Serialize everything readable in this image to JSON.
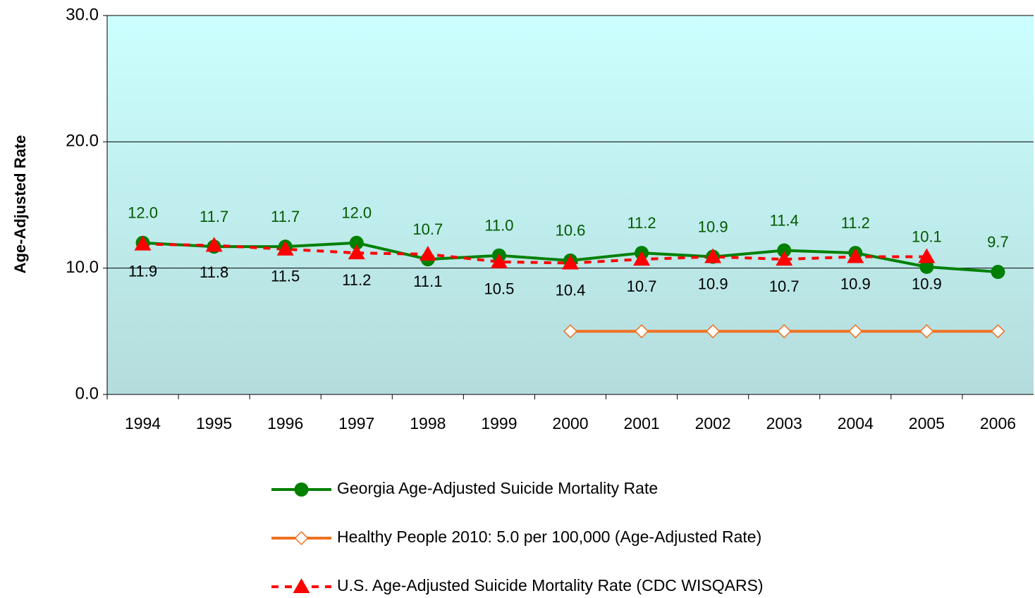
{
  "chart_data": {
    "type": "line",
    "y_label": "Age-Adjusted Rate",
    "categories": [
      "1994",
      "1995",
      "1996",
      "1997",
      "1998",
      "1999",
      "2000",
      "2001",
      "2002",
      "2003",
      "2004",
      "2005",
      "2006"
    ],
    "series": [
      {
        "name": "Georgia Age-Adjusted Suicide Mortality Rate",
        "color": "#008000",
        "marker": "circle",
        "dash": false,
        "label_position": "above",
        "values": [
          12.0,
          11.7,
          11.7,
          12.0,
          10.7,
          11.0,
          10.6,
          11.2,
          10.9,
          11.4,
          11.2,
          10.1,
          9.7
        ],
        "value_labels": [
          "12.0",
          "11.7",
          "11.7",
          "12.0",
          "10.7",
          "11.0",
          "10.6",
          "11.2",
          "10.9",
          "11.4",
          "11.2",
          "10.1",
          "9.7"
        ]
      },
      {
        "name": "Healthy People 2010: 5.0 per 100,000 (Age-Adjusted Rate)",
        "color": "#f07020",
        "marker": "diamond",
        "dash": false,
        "values": [
          null,
          null,
          null,
          null,
          null,
          null,
          5.0,
          5.0,
          5.0,
          5.0,
          5.0,
          5.0,
          5.0
        ]
      },
      {
        "name": "U.S. Age-Adjusted Suicide Mortality Rate (CDC WISQARS)",
        "color": "#ff0000",
        "marker": "triangle",
        "dash": true,
        "label_position": "below",
        "values": [
          11.9,
          11.8,
          11.5,
          11.2,
          11.1,
          10.5,
          10.4,
          10.7,
          10.9,
          10.7,
          10.9,
          10.9,
          null
        ],
        "value_labels": [
          "11.9",
          "11.8",
          "11.5",
          "11.2",
          "11.1",
          "10.5",
          "10.4",
          "10.7",
          "10.9",
          "10.7",
          "10.9",
          "10.9",
          null
        ]
      }
    ],
    "ylim": [
      0,
      30
    ],
    "yticks": [
      {
        "value": 0,
        "label": "0.0"
      },
      {
        "value": 10,
        "label": "10.0"
      },
      {
        "value": 20,
        "label": "20.0"
      },
      {
        "value": 30,
        "label": "30.0"
      }
    ],
    "grid": true
  }
}
